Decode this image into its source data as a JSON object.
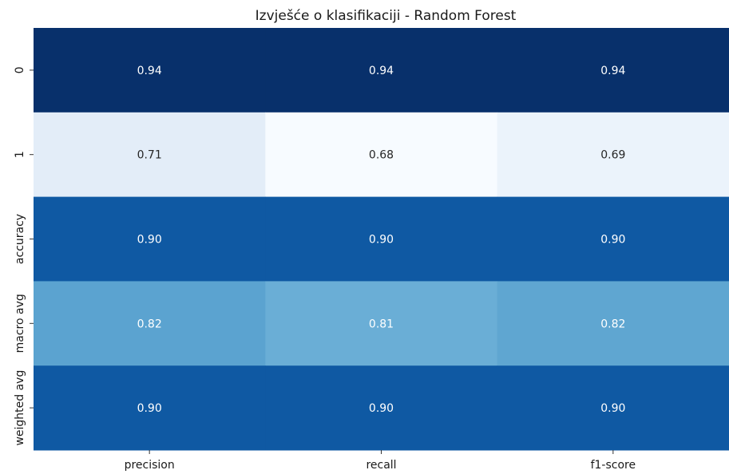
{
  "chart_data": {
    "type": "heatmap",
    "title": "Izvješće o klasifikaciji - Random Forest",
    "xlabel": "",
    "ylabel": "",
    "colormap": "Blues",
    "colorbar": false,
    "columns": [
      "precision",
      "recall",
      "f1-score"
    ],
    "rows": [
      "0",
      "1",
      "accuracy",
      "macro avg",
      "weighted avg"
    ],
    "values": [
      [
        0.94,
        0.94,
        0.94
      ],
      [
        0.71,
        0.68,
        0.69
      ],
      [
        0.9,
        0.9,
        0.9
      ],
      [
        0.82,
        0.81,
        0.82
      ],
      [
        0.9,
        0.9,
        0.9
      ]
    ],
    "value_labels": [
      [
        "0.94",
        "0.94",
        "0.94"
      ],
      [
        "0.71",
        "0.68",
        "0.69"
      ],
      [
        "0.90",
        "0.90",
        "0.90"
      ],
      [
        "0.82",
        "0.81",
        "0.82"
      ],
      [
        "0.90",
        "0.90",
        "0.90"
      ]
    ],
    "cell_colors": [
      [
        "#08306b",
        "#08306b",
        "#08306b"
      ],
      [
        "#e3edf8",
        "#f7fbff",
        "#ebf3fb"
      ],
      [
        "#0f59a3",
        "#0f59a3",
        "#0f59a3"
      ],
      [
        "#5ba3d0",
        "#6aaed6",
        "#5fa6d1"
      ],
      [
        "#0f59a3",
        "#0f59a3",
        "#0f59a3"
      ]
    ],
    "label_colors": [
      [
        "#ffffff",
        "#ffffff",
        "#ffffff"
      ],
      [
        "#262626",
        "#262626",
        "#262626"
      ],
      [
        "#ffffff",
        "#ffffff",
        "#ffffff"
      ],
      [
        "#ffffff",
        "#ffffff",
        "#ffffff"
      ],
      [
        "#ffffff",
        "#ffffff",
        "#ffffff"
      ]
    ]
  }
}
